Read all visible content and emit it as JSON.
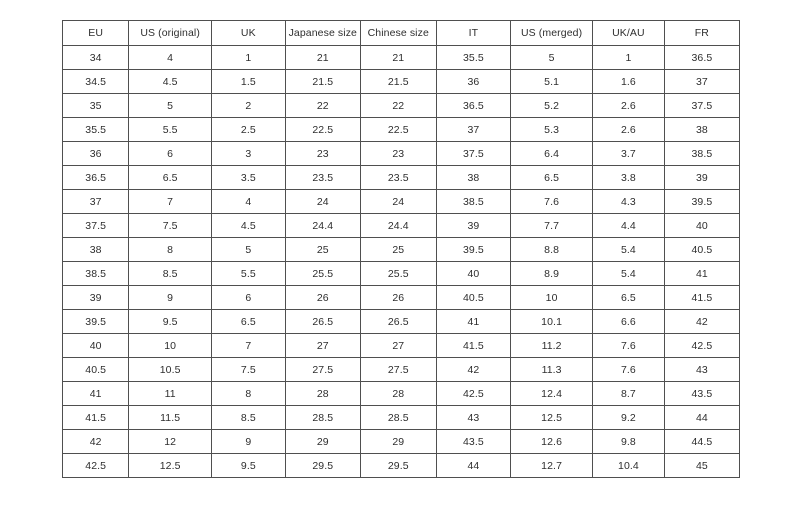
{
  "chart_data": {
    "type": "table",
    "columns": [
      "EU",
      "US (original)",
      "UK",
      "Japanese size",
      "Chinese size",
      "IT",
      "US (merged)",
      "UK/AU",
      "FR"
    ],
    "rows": [
      [
        "34",
        "4",
        "1",
        "21",
        "21",
        "35.5",
        "5",
        "1",
        "36.5"
      ],
      [
        "34.5",
        "4.5",
        "1.5",
        "21.5",
        "21.5",
        "36",
        "5.1",
        "1.6",
        "37"
      ],
      [
        "35",
        "5",
        "2",
        "22",
        "22",
        "36.5",
        "5.2",
        "2.6",
        "37.5"
      ],
      [
        "35.5",
        "5.5",
        "2.5",
        "22.5",
        "22.5",
        "37",
        "5.3",
        "2.6",
        "38"
      ],
      [
        "36",
        "6",
        "3",
        "23",
        "23",
        "37.5",
        "6.4",
        "3.7",
        "38.5"
      ],
      [
        "36.5",
        "6.5",
        "3.5",
        "23.5",
        "23.5",
        "38",
        "6.5",
        "3.8",
        "39"
      ],
      [
        "37",
        "7",
        "4",
        "24",
        "24",
        "38.5",
        "7.6",
        "4.3",
        "39.5"
      ],
      [
        "37.5",
        "7.5",
        "4.5",
        "24.4",
        "24.4",
        "39",
        "7.7",
        "4.4",
        "40"
      ],
      [
        "38",
        "8",
        "5",
        "25",
        "25",
        "39.5",
        "8.8",
        "5.4",
        "40.5"
      ],
      [
        "38.5",
        "8.5",
        "5.5",
        "25.5",
        "25.5",
        "40",
        "8.9",
        "5.4",
        "41"
      ],
      [
        "39",
        "9",
        "6",
        "26",
        "26",
        "40.5",
        "10",
        "6.5",
        "41.5"
      ],
      [
        "39.5",
        "9.5",
        "6.5",
        "26.5",
        "26.5",
        "41",
        "10.1",
        "6.6",
        "42"
      ],
      [
        "40",
        "10",
        "7",
        "27",
        "27",
        "41.5",
        "11.2",
        "7.6",
        "42.5"
      ],
      [
        "40.5",
        "10.5",
        "7.5",
        "27.5",
        "27.5",
        "42",
        "11.3",
        "7.6",
        "43"
      ],
      [
        "41",
        "11",
        "8",
        "28",
        "28",
        "42.5",
        "12.4",
        "8.7",
        "43.5"
      ],
      [
        "41.5",
        "11.5",
        "8.5",
        "28.5",
        "28.5",
        "43",
        "12.5",
        "9.2",
        "44"
      ],
      [
        "42",
        "12",
        "9",
        "29",
        "29",
        "43.5",
        "12.6",
        "9.8",
        "44.5"
      ],
      [
        "42.5",
        "12.5",
        "9.5",
        "29.5",
        "29.5",
        "44",
        "12.7",
        "10.4",
        "45"
      ]
    ]
  }
}
